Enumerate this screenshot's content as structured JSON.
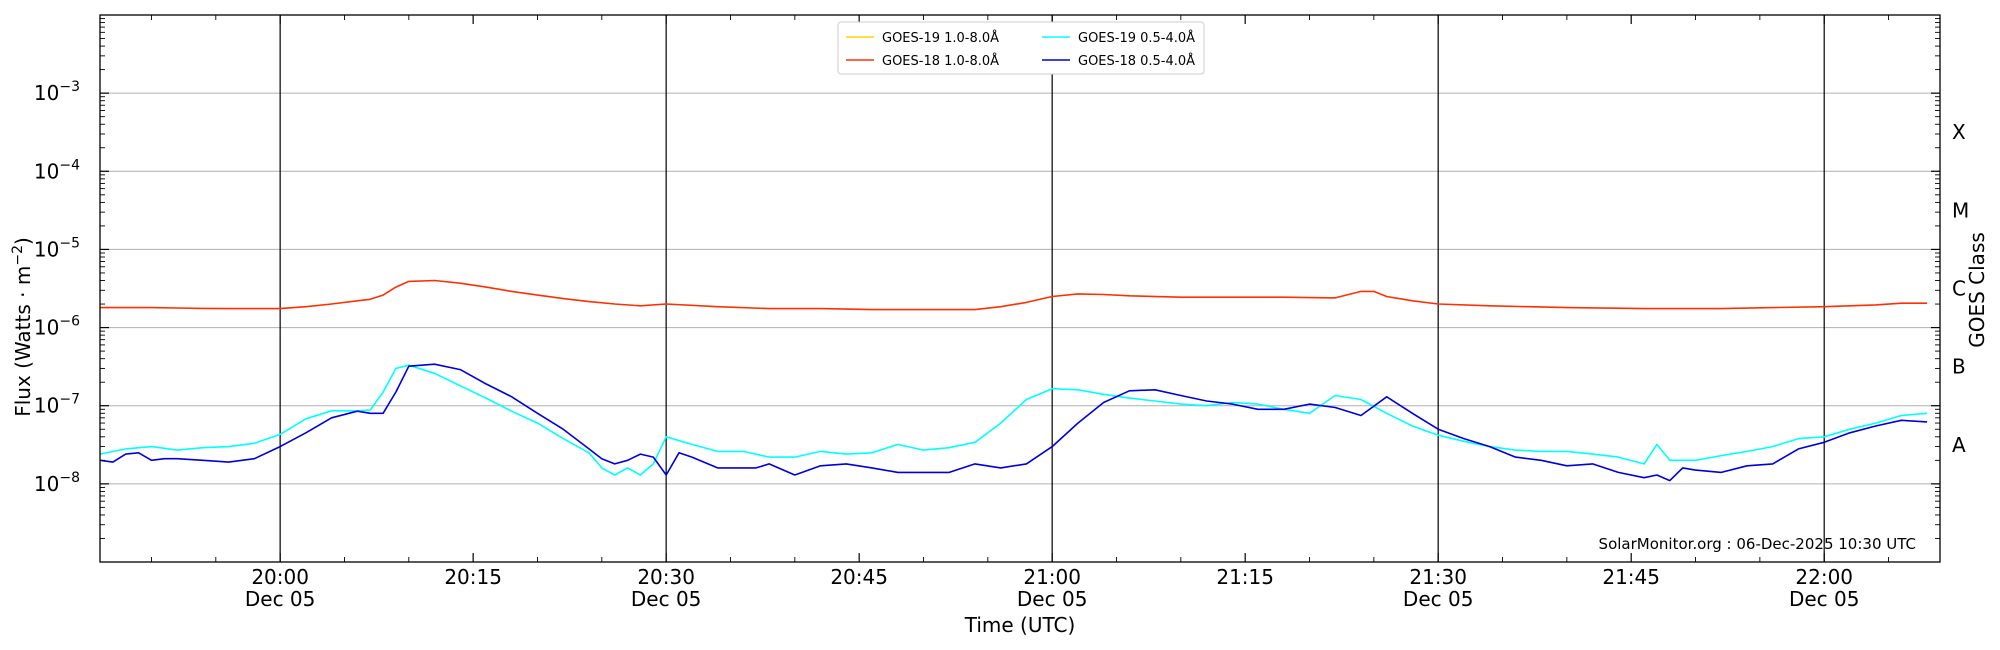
{
  "chart_data": {
    "type": "line",
    "xlabel": "Time (UTC)",
    "ylabel": "Flux (Watts · m⁻²)",
    "y2label": "GOES Class",
    "yscale": "log",
    "ylim": [
      1e-09,
      0.01
    ],
    "xlim": [
      "19:46",
      "22:09"
    ],
    "grid": "horizontal",
    "legend_position": "top-center",
    "credit": "SolarMonitor.org : 06-Dec-2025 10:30 UTC",
    "y_ticks": [
      {
        "value": 1e-08,
        "base": "10",
        "exp": "−8"
      },
      {
        "value": 1e-07,
        "base": "10",
        "exp": "−7"
      },
      {
        "value": 1e-06,
        "base": "10",
        "exp": "−6"
      },
      {
        "value": 1e-05,
        "base": "10",
        "exp": "−5"
      },
      {
        "value": 0.0001,
        "base": "10",
        "exp": "−4"
      },
      {
        "value": 0.001,
        "base": "10",
        "exp": "−3"
      }
    ],
    "x_ticks": [
      {
        "time": "20:00",
        "label": "20:00",
        "sublabel": "Dec 05",
        "major": true
      },
      {
        "time": "20:15",
        "label": "20:15",
        "sublabel": "",
        "major": false
      },
      {
        "time": "20:30",
        "label": "20:30",
        "sublabel": "Dec 05",
        "major": true
      },
      {
        "time": "20:45",
        "label": "20:45",
        "sublabel": "",
        "major": false
      },
      {
        "time": "21:00",
        "label": "21:00",
        "sublabel": "Dec 05",
        "major": true
      },
      {
        "time": "21:15",
        "label": "21:15",
        "sublabel": "",
        "major": false
      },
      {
        "time": "21:30",
        "label": "21:30",
        "sublabel": "Dec 05",
        "major": true
      },
      {
        "time": "21:45",
        "label": "21:45",
        "sublabel": "",
        "major": false
      },
      {
        "time": "22:00",
        "label": "22:00",
        "sublabel": "Dec 05",
        "major": true
      }
    ],
    "goes_classes": [
      {
        "label": "A",
        "value": 1e-08
      },
      {
        "label": "B",
        "value": 1e-07
      },
      {
        "label": "C",
        "value": 1e-06
      },
      {
        "label": "M",
        "value": 1e-05
      },
      {
        "label": "X",
        "value": 0.0001
      }
    ],
    "series": [
      {
        "name": "GOES-19 1.0-8.0Å",
        "color": "#ffd400",
        "x": [],
        "y": []
      },
      {
        "name": "GOES-19 0.5-4.0Å",
        "color": "#00ffff",
        "x": [
          "19:46",
          "19:48",
          "19:50",
          "19:52",
          "19:54",
          "19:56",
          "19:58",
          "20:00",
          "20:02",
          "20:04",
          "20:06",
          "20:07",
          "20:08",
          "20:09",
          "20:10",
          "20:12",
          "20:14",
          "20:16",
          "20:18",
          "20:20",
          "20:22",
          "20:24",
          "20:25",
          "20:26",
          "20:27",
          "20:28",
          "20:29",
          "20:30",
          "20:32",
          "20:34",
          "20:36",
          "20:38",
          "20:40",
          "20:42",
          "20:44",
          "20:46",
          "20:48",
          "20:50",
          "20:52",
          "20:54",
          "20:56",
          "20:58",
          "21:00",
          "21:02",
          "21:04",
          "21:06",
          "21:08",
          "21:10",
          "21:12",
          "21:14",
          "21:16",
          "21:18",
          "21:20",
          "21:22",
          "21:24",
          "21:26",
          "21:28",
          "21:30",
          "21:32",
          "21:34",
          "21:36",
          "21:38",
          "21:40",
          "21:42",
          "21:44",
          "21:46",
          "21:47",
          "21:48",
          "21:50",
          "21:52",
          "21:54",
          "21:56",
          "21:58",
          "22:00",
          "22:02",
          "22:04",
          "22:06",
          "22:08"
        ],
        "y": [
          2.4e-08,
          2.8e-08,
          3e-08,
          2.7e-08,
          2.9e-08,
          3e-08,
          3.3e-08,
          4.3e-08,
          6.8e-08,
          8.6e-08,
          8.6e-08,
          8.8e-08,
          1.5e-07,
          3e-07,
          3.3e-07,
          2.6e-07,
          1.8e-07,
          1.25e-07,
          8.5e-08,
          6e-08,
          3.8e-08,
          2.5e-08,
          1.6e-08,
          1.3e-08,
          1.6e-08,
          1.3e-08,
          1.8e-08,
          4e-08,
          3.2e-08,
          2.6e-08,
          2.6e-08,
          2.2e-08,
          2.2e-08,
          2.6e-08,
          2.4e-08,
          2.5e-08,
          3.2e-08,
          2.7e-08,
          2.9e-08,
          3.4e-08,
          6e-08,
          1.2e-07,
          1.65e-07,
          1.6e-07,
          1.4e-07,
          1.25e-07,
          1.15e-07,
          1.05e-07,
          1e-07,
          1.1e-07,
          1.05e-07,
          9e-08,
          8e-08,
          1.35e-07,
          1.2e-07,
          8e-08,
          5.5e-08,
          4.2e-08,
          3.5e-08,
          3e-08,
          2.7e-08,
          2.6e-08,
          2.6e-08,
          2.4e-08,
          2.2e-08,
          1.8e-08,
          3.2e-08,
          2e-08,
          2e-08,
          2.3e-08,
          2.6e-08,
          3e-08,
          3.8e-08,
          4e-08,
          5e-08,
          6e-08,
          7.5e-08,
          8e-08
        ]
      },
      {
        "name": "GOES-18 1.0-8.0Å",
        "color": "#ff3000",
        "x": [
          "19:46",
          "19:48",
          "19:50",
          "19:52",
          "19:54",
          "19:56",
          "19:58",
          "20:00",
          "20:02",
          "20:04",
          "20:06",
          "20:07",
          "20:08",
          "20:09",
          "20:10",
          "20:12",
          "20:14",
          "20:16",
          "20:18",
          "20:20",
          "20:22",
          "20:24",
          "20:26",
          "20:28",
          "20:30",
          "20:34",
          "20:38",
          "20:42",
          "20:46",
          "20:50",
          "20:54",
          "20:56",
          "20:58",
          "21:00",
          "21:02",
          "21:04",
          "21:06",
          "21:10",
          "21:14",
          "21:18",
          "21:22",
          "21:24",
          "21:25",
          "21:26",
          "21:28",
          "21:30",
          "21:34",
          "21:40",
          "21:46",
          "21:52",
          "21:56",
          "22:00",
          "22:04",
          "22:06",
          "22:08"
        ],
        "y": [
          1.8e-06,
          1.8e-06,
          1.8e-06,
          1.78e-06,
          1.76e-06,
          1.75e-06,
          1.75e-06,
          1.75e-06,
          1.85e-06,
          2e-06,
          2.2e-06,
          2.3e-06,
          2.6e-06,
          3.3e-06,
          3.9e-06,
          4e-06,
          3.7e-06,
          3.3e-06,
          2.9e-06,
          2.6e-06,
          2.35e-06,
          2.15e-06,
          2e-06,
          1.9e-06,
          2e-06,
          1.85e-06,
          1.75e-06,
          1.75e-06,
          1.7e-06,
          1.7e-06,
          1.7e-06,
          1.85e-06,
          2.1e-06,
          2.5e-06,
          2.7e-06,
          2.65e-06,
          2.55e-06,
          2.45e-06,
          2.45e-06,
          2.45e-06,
          2.4e-06,
          2.9e-06,
          2.9e-06,
          2.5e-06,
          2.2e-06,
          2e-06,
          1.9e-06,
          1.8e-06,
          1.75e-06,
          1.75e-06,
          1.8e-06,
          1.85e-06,
          1.95e-06,
          2.05e-06,
          2.05e-06
        ]
      },
      {
        "name": "GOES-18 0.5-4.0Å",
        "color": "#0000dd",
        "x": [
          "19:46",
          "19:47",
          "19:48",
          "19:49",
          "19:50",
          "19:51",
          "19:52",
          "19:54",
          "19:56",
          "19:58",
          "20:00",
          "20:02",
          "20:04",
          "20:06",
          "20:07",
          "20:08",
          "20:09",
          "20:10",
          "20:12",
          "20:14",
          "20:16",
          "20:18",
          "20:20",
          "20:22",
          "20:24",
          "20:25",
          "20:26",
          "20:27",
          "20:28",
          "20:29",
          "20:30",
          "20:31",
          "20:32",
          "20:34",
          "20:36",
          "20:37",
          "20:38",
          "20:40",
          "20:42",
          "20:44",
          "20:46",
          "20:48",
          "20:50",
          "20:52",
          "20:54",
          "20:56",
          "20:58",
          "21:00",
          "21:02",
          "21:04",
          "21:06",
          "21:08",
          "21:10",
          "21:12",
          "21:14",
          "21:16",
          "21:18",
          "21:20",
          "21:22",
          "21:24",
          "21:26",
          "21:28",
          "21:30",
          "21:32",
          "21:34",
          "21:36",
          "21:38",
          "21:40",
          "21:42",
          "21:44",
          "21:46",
          "21:47",
          "21:48",
          "21:49",
          "21:50",
          "21:52",
          "21:54",
          "21:56",
          "21:58",
          "22:00",
          "22:02",
          "22:04",
          "22:06",
          "22:08"
        ],
        "y": [
          2e-08,
          1.9e-08,
          2.4e-08,
          2.5e-08,
          2e-08,
          2.1e-08,
          2.1e-08,
          2e-08,
          1.9e-08,
          2.1e-08,
          3e-08,
          4.5e-08,
          7e-08,
          8.5e-08,
          8e-08,
          8e-08,
          1.5e-07,
          3.2e-07,
          3.4e-07,
          2.9e-07,
          1.9e-07,
          1.3e-07,
          8e-08,
          5e-08,
          2.8e-08,
          2.1e-08,
          1.8e-08,
          2e-08,
          2.4e-08,
          2.2e-08,
          1.3e-08,
          2.5e-08,
          2.2e-08,
          1.6e-08,
          1.6e-08,
          1.6e-08,
          1.8e-08,
          1.3e-08,
          1.7e-08,
          1.8e-08,
          1.6e-08,
          1.4e-08,
          1.4e-08,
          1.4e-08,
          1.8e-08,
          1.6e-08,
          1.8e-08,
          3e-08,
          6e-08,
          1.1e-07,
          1.55e-07,
          1.6e-07,
          1.35e-07,
          1.15e-07,
          1.05e-07,
          9e-08,
          9e-08,
          1.05e-07,
          9.5e-08,
          7.5e-08,
          1.3e-07,
          8e-08,
          5e-08,
          3.8e-08,
          3e-08,
          2.2e-08,
          2e-08,
          1.7e-08,
          1.8e-08,
          1.4e-08,
          1.2e-08,
          1.3e-08,
          1.1e-08,
          1.6e-08,
          1.5e-08,
          1.4e-08,
          1.7e-08,
          1.8e-08,
          2.8e-08,
          3.4e-08,
          4.5e-08,
          5.5e-08,
          6.5e-08,
          6.2e-08
        ]
      }
    ]
  }
}
